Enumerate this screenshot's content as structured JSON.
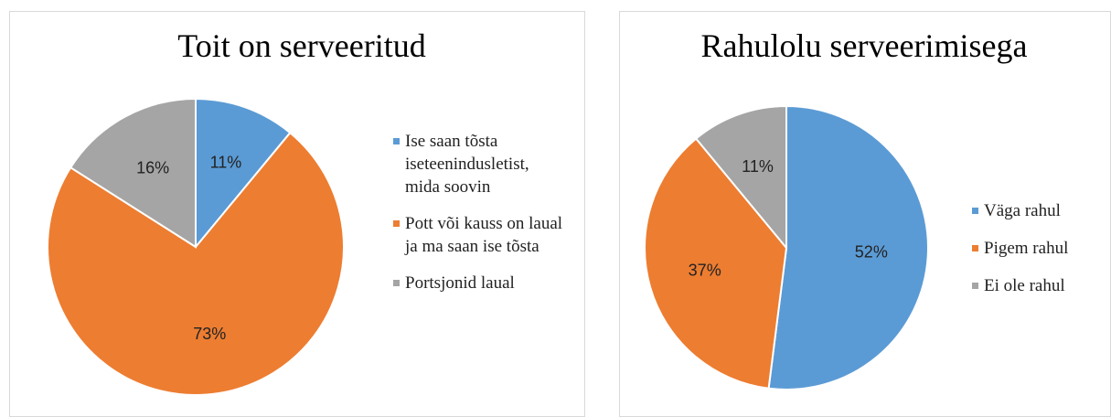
{
  "chart_data": [
    {
      "type": "pie",
      "title": "Toit on serveeritud",
      "categories": [
        "Ise saan tõsta iseteenindusletist, mida soovin",
        "Pott või kauss on laual ja ma saan ise tõsta",
        "Portsjonid laual"
      ],
      "values": [
        11,
        73,
        16
      ],
      "value_labels": [
        "11%",
        "73%",
        "16%"
      ],
      "colors": [
        "#5b9bd5",
        "#ed7d31",
        "#a5a5a5"
      ],
      "legend": "right"
    },
    {
      "type": "pie",
      "title": "Rahulolu serveerimisega",
      "categories": [
        "Väga rahul",
        "Pigem rahul",
        "Ei ole rahul"
      ],
      "values": [
        52,
        37,
        11
      ],
      "value_labels": [
        "52%",
        "37%",
        "11%"
      ],
      "colors": [
        "#5b9bd5",
        "#ed7d31",
        "#a5a5a5"
      ],
      "legend": "right"
    }
  ]
}
